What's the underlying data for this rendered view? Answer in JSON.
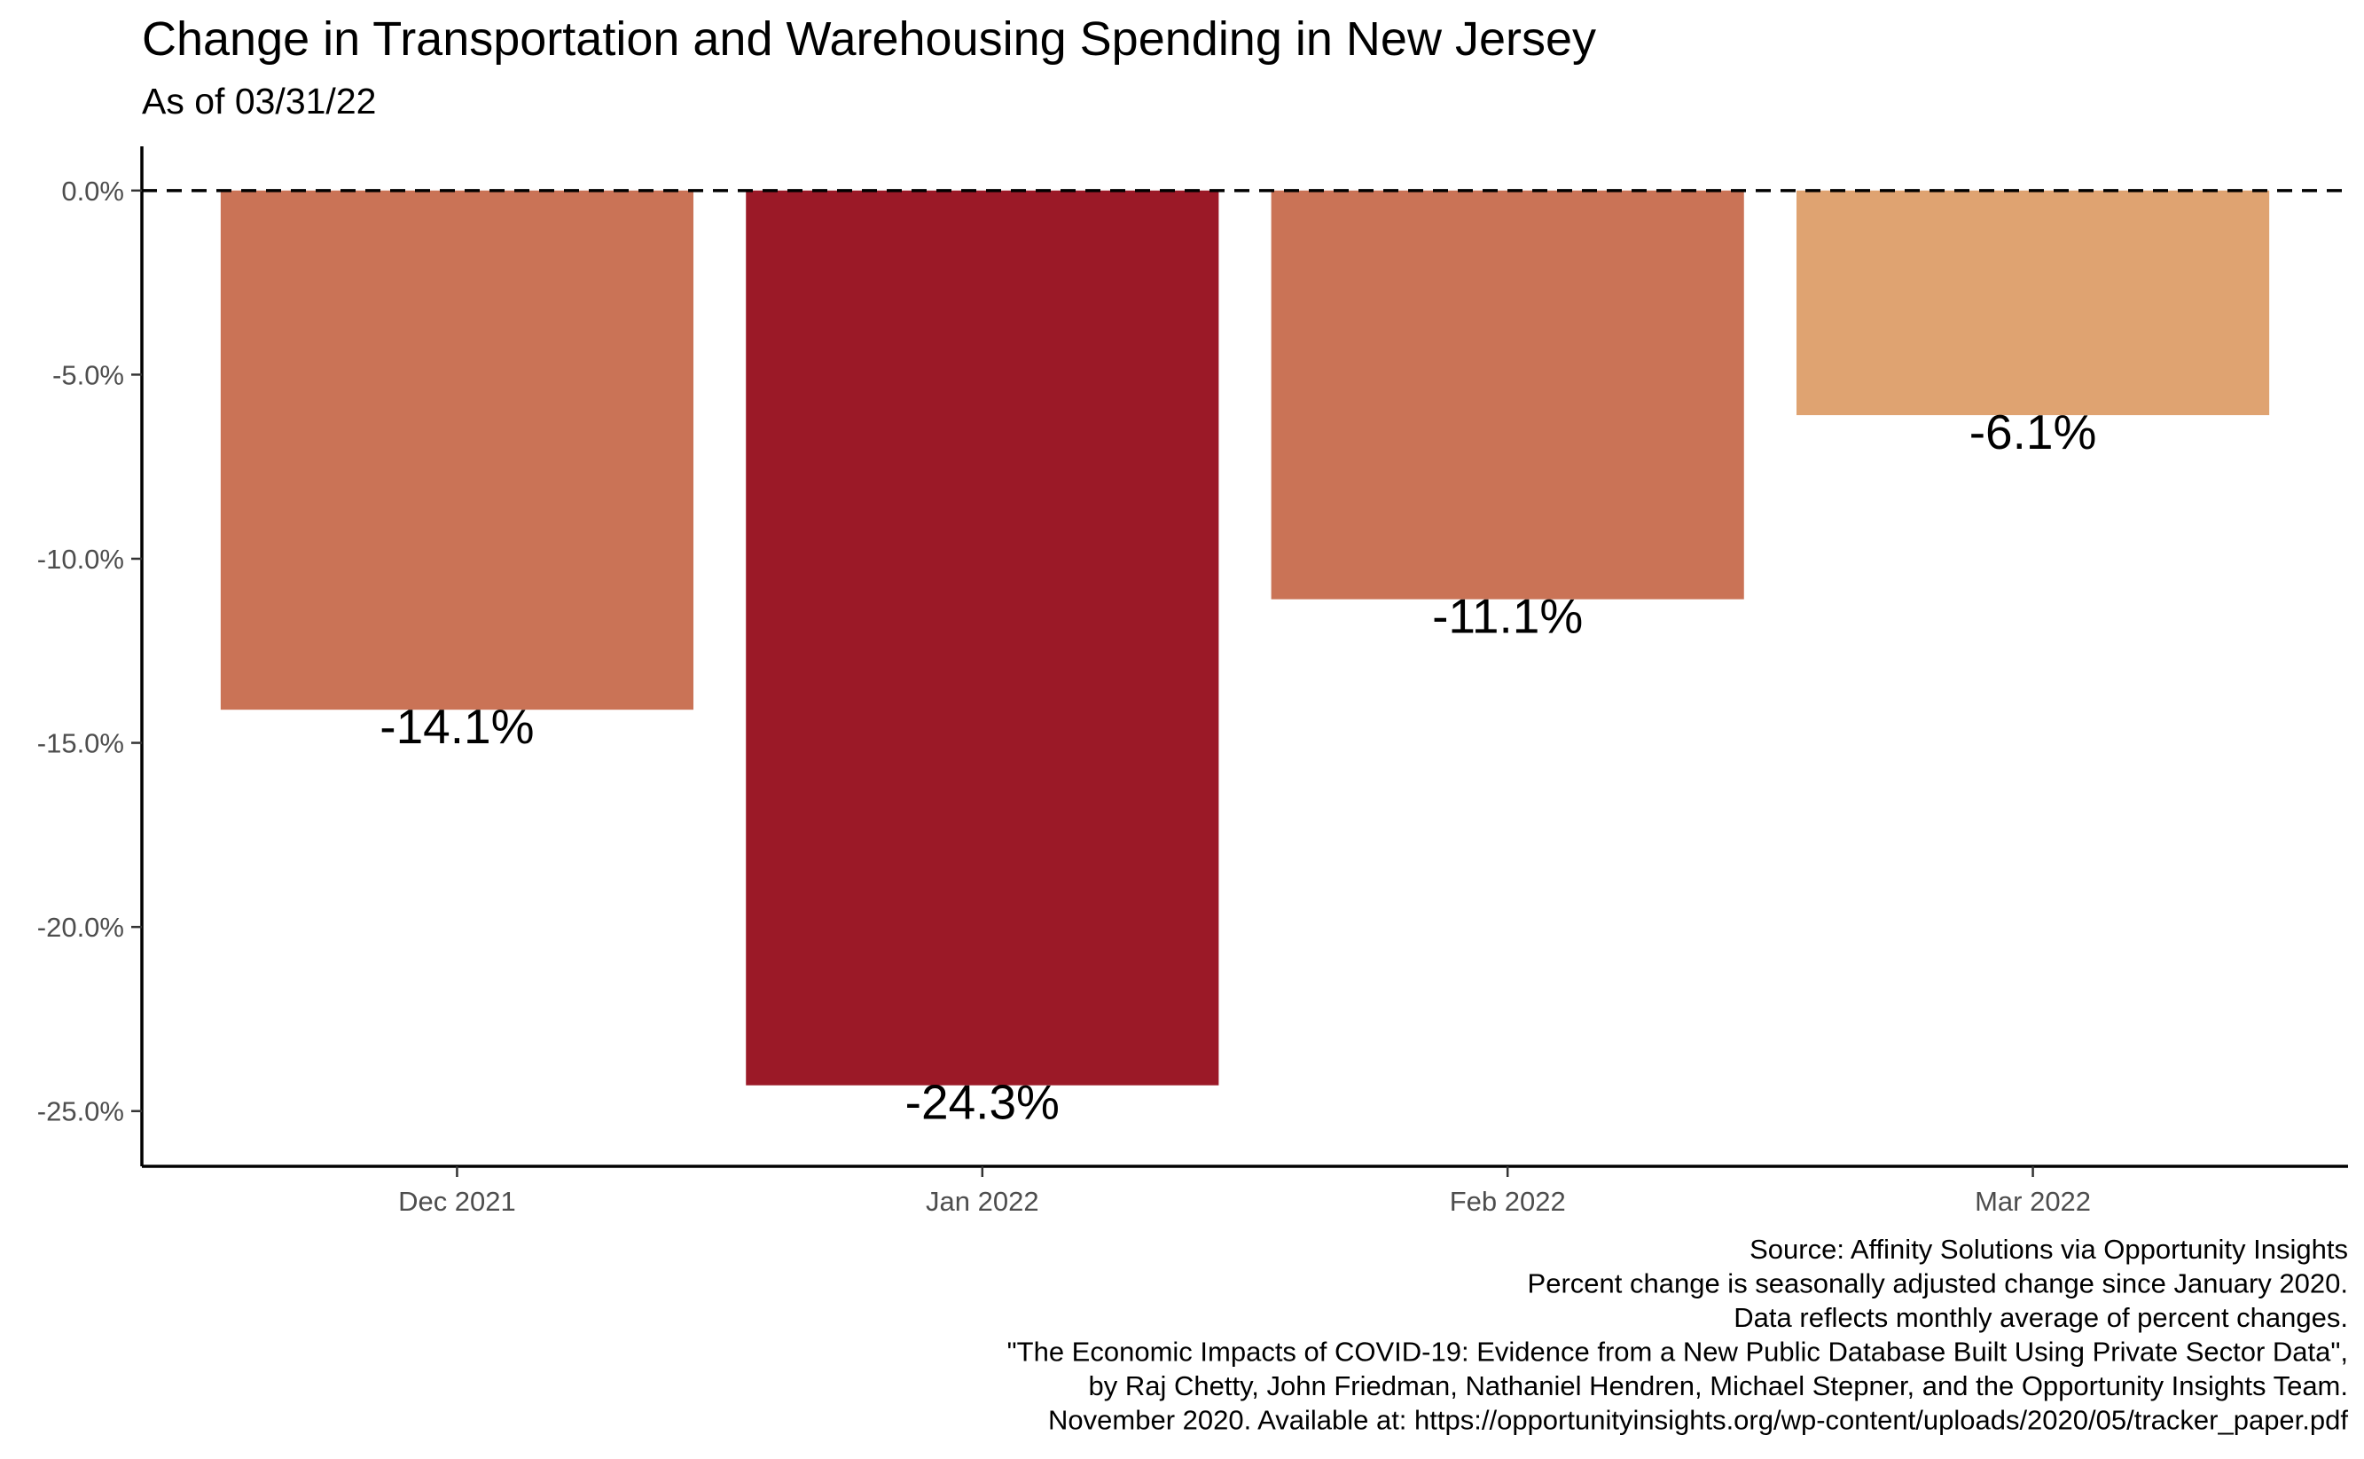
{
  "chart_data": {
    "type": "bar",
    "title": "Change in Transportation and Warehousing Spending in New Jersey",
    "subtitle": "As of 03/31/22",
    "categories": [
      "Dec 2021",
      "Jan 2022",
      "Feb 2022",
      "Mar 2022"
    ],
    "values": [
      -14.1,
      -24.3,
      -11.1,
      -6.1
    ],
    "data_labels": [
      "-14.1%",
      "-24.3%",
      "-11.1%",
      "-6.1%"
    ],
    "bar_colors": [
      "#ca7356",
      "#9b1927",
      "#ca7356",
      "#dfa371"
    ],
    "y_ticks": [
      0,
      -5,
      -10,
      -15,
      -20,
      -25
    ],
    "y_tick_labels": [
      "0.0%",
      "-5.0%",
      "-10.0%",
      "-15.0%",
      "-20.0%",
      "-25.0%"
    ],
    "ylim": [
      -26.5,
      1.2
    ],
    "reference_line": 0,
    "reference_line_style": "dashed",
    "xlabel": "",
    "ylabel": "",
    "grid": false,
    "caption": [
      "Source: Affinity Solutions via Opportunity Insights",
      "Percent change is seasonally adjusted change since January 2020.",
      "Data reflects monthly average of percent changes.",
      "\"The Economic Impacts of COVID-19: Evidence from a New Public Database Built Using Private Sector Data\",",
      "by Raj Chetty, John Friedman, Nathaniel Hendren, Michael Stepner, and the Opportunity Insights Team.",
      "November 2020. Available at: https://opportunityinsights.org/wp-content/uploads/2020/05/tracker_paper.pdf"
    ]
  }
}
